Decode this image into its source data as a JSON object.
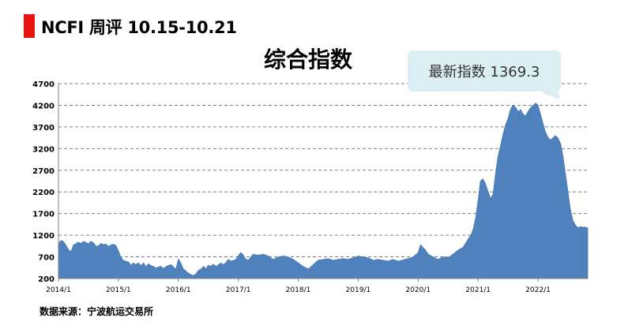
{
  "header": {
    "title": "NCFI 周评 10.15-10.21"
  },
  "footer": {
    "source": "数据来源：宁波航运交易所"
  },
  "callout": {
    "text": "最新指数 1369.3"
  },
  "colors": {
    "accent": "#e8140f",
    "area_fill": "#4f81bd",
    "callout_bg": "#dbeef4"
  },
  "chart_data": {
    "type": "area",
    "title": "综合指数",
    "xlabel": "",
    "ylabel": "",
    "ylim": [
      200,
      4700
    ],
    "yticks": [
      200,
      700,
      1200,
      1700,
      2200,
      2700,
      3200,
      3700,
      4200,
      4700
    ],
    "xticks": [
      "2014/1",
      "2015/1",
      "2016/1",
      "2017/1",
      "2018/1",
      "2019/1",
      "2020/1",
      "2021/1",
      "2022/1"
    ],
    "grid": true,
    "legend": "none",
    "x_range": [
      2014.0,
      2022.83
    ],
    "series": [
      {
        "x": [
          2014.0,
          2014.04,
          2014.08,
          2014.12,
          2014.17,
          2014.21,
          2014.25,
          2014.29,
          2014.33,
          2014.38,
          2014.42,
          2014.46,
          2014.5,
          2014.54,
          2014.58,
          2014.63,
          2014.67,
          2014.71,
          2014.75,
          2014.79,
          2014.83,
          2014.88,
          2014.92,
          2014.96,
          2015.0,
          2015.04,
          2015.08,
          2015.12,
          2015.17,
          2015.21,
          2015.25,
          2015.29,
          2015.33,
          2015.38,
          2015.42,
          2015.46,
          2015.5,
          2015.54,
          2015.58,
          2015.63,
          2015.67,
          2015.71,
          2015.75,
          2015.79,
          2015.83,
          2015.88,
          2015.92,
          2015.96,
          2016.0,
          2016.04,
          2016.08,
          2016.12,
          2016.17,
          2016.21,
          2016.25,
          2016.29,
          2016.33,
          2016.38,
          2016.42,
          2016.46,
          2016.5,
          2016.54,
          2016.58,
          2016.63,
          2016.67,
          2016.71,
          2016.75,
          2016.79,
          2016.83,
          2016.88,
          2016.92,
          2016.96,
          2017.0,
          2017.04,
          2017.08,
          2017.12,
          2017.17,
          2017.21,
          2017.25,
          2017.33,
          2017.42,
          2017.5,
          2017.58,
          2017.67,
          2017.75,
          2017.83,
          2017.92,
          2018.0,
          2018.08,
          2018.17,
          2018.25,
          2018.33,
          2018.42,
          2018.5,
          2018.58,
          2018.67,
          2018.75,
          2018.83,
          2018.92,
          2019.0,
          2019.08,
          2019.17,
          2019.25,
          2019.33,
          2019.42,
          2019.5,
          2019.58,
          2019.67,
          2019.75,
          2019.83,
          2019.92,
          2020.0,
          2020.04,
          2020.08,
          2020.12,
          2020.17,
          2020.25,
          2020.33,
          2020.42,
          2020.5,
          2020.58,
          2020.67,
          2020.75,
          2020.83,
          2020.88,
          2020.92,
          2020.96,
          2021.0,
          2021.04,
          2021.08,
          2021.12,
          2021.17,
          2021.21,
          2021.25,
          2021.29,
          2021.33,
          2021.38,
          2021.42,
          2021.46,
          2021.5,
          2021.54,
          2021.58,
          2021.63,
          2021.67,
          2021.71,
          2021.75,
          2021.79,
          2021.83,
          2021.88,
          2021.92,
          2021.96,
          2022.0,
          2022.04,
          2022.08,
          2022.12,
          2022.17,
          2022.21,
          2022.25,
          2022.29,
          2022.33,
          2022.38,
          2022.42,
          2022.46,
          2022.5,
          2022.54,
          2022.58,
          2022.63,
          2022.67,
          2022.71,
          2022.75,
          2022.79,
          2022.81,
          2022.83
        ],
        "y": [
          1000,
          1080,
          1060,
          980,
          860,
          820,
          980,
          1000,
          1040,
          1010,
          1060,
          1030,
          1000,
          1060,
          1030,
          940,
          960,
          1010,
          980,
          1000,
          940,
          980,
          990,
          960,
          840,
          700,
          620,
          600,
          580,
          500,
          560,
          520,
          560,
          500,
          560,
          470,
          540,
          500,
          480,
          440,
          470,
          480,
          430,
          470,
          500,
          520,
          460,
          420,
          650,
          560,
          430,
          380,
          320,
          290,
          270,
          300,
          380,
          420,
          480,
          420,
          510,
          480,
          530,
          480,
          520,
          560,
          520,
          560,
          640,
          600,
          620,
          640,
          720,
          800,
          750,
          650,
          620,
          700,
          760,
          740,
          760,
          720,
          640,
          700,
          720,
          700,
          640,
          560,
          480,
          420,
          520,
          620,
          640,
          660,
          620,
          640,
          660,
          640,
          680,
          720,
          700,
          680,
          620,
          640,
          620,
          600,
          640,
          600,
          630,
          660,
          700,
          800,
          980,
          920,
          860,
          760,
          700,
          640,
          700,
          680,
          760,
          860,
          920,
          1100,
          1200,
          1350,
          1600,
          2000,
          2450,
          2500,
          2400,
          2200,
          2050,
          2150,
          2600,
          3000,
          3300,
          3550,
          3750,
          3900,
          4100,
          4200,
          4150,
          4050,
          4100,
          4000,
          3950,
          4050,
          4150,
          4200,
          4250,
          4200,
          4000,
          3800,
          3600,
          3450,
          3400,
          3450,
          3500,
          3450,
          3300,
          3000,
          2600,
          2200,
          1800,
          1550,
          1420,
          1370,
          1400,
          1380,
          1390,
          1369.3,
          1369.3
        ]
      }
    ]
  }
}
